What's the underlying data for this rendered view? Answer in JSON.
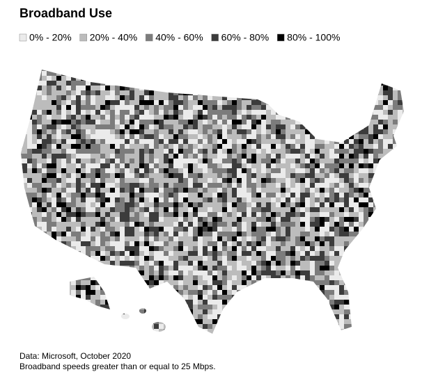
{
  "title": "Broadband Use",
  "legend": [
    {
      "label": "0% - 20%",
      "color": "#ebebeb"
    },
    {
      "label": "20% - 40%",
      "color": "#bcbcbc"
    },
    {
      "label": "40% - 60%",
      "color": "#7c7c7c"
    },
    {
      "label": "60% - 80%",
      "color": "#3c3c3c"
    },
    {
      "label": "80% - 100%",
      "color": "#000000"
    }
  ],
  "notes": [
    "Data: Microsoft, October 2020",
    "Broadband speeds greater than or equal to 25 Mbps."
  ]
}
